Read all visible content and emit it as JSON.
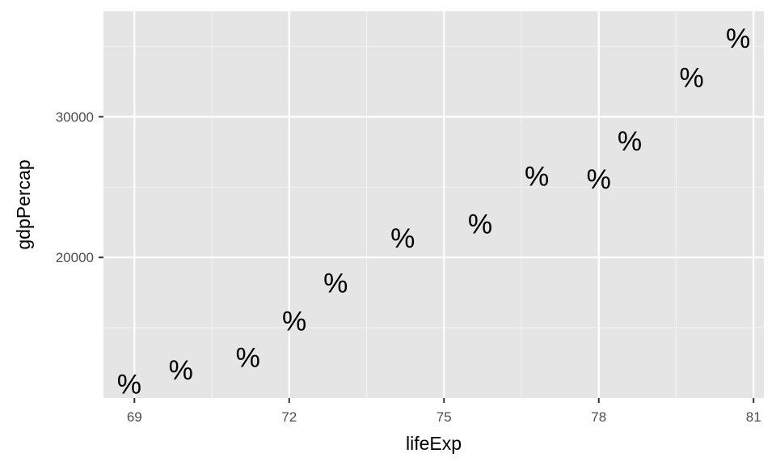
{
  "chart_data": {
    "type": "scatter",
    "title": "",
    "xlabel": "lifeExp",
    "ylabel": "gdpPercap",
    "marker": "%",
    "xlim": [
      68.4,
      81.2
    ],
    "ylim": [
      10000,
      37500
    ],
    "x_ticks": [
      69,
      72,
      75,
      78,
      81
    ],
    "y_ticks": [
      20000,
      30000
    ],
    "grid": true,
    "legend": "none",
    "points": [
      {
        "x": 68.9,
        "y": 11000
      },
      {
        "x": 69.9,
        "y": 12000
      },
      {
        "x": 71.2,
        "y": 12900
      },
      {
        "x": 72.1,
        "y": 15500
      },
      {
        "x": 72.9,
        "y": 18200
      },
      {
        "x": 74.2,
        "y": 21400
      },
      {
        "x": 75.7,
        "y": 22400
      },
      {
        "x": 76.8,
        "y": 25800
      },
      {
        "x": 78.0,
        "y": 25600
      },
      {
        "x": 78.6,
        "y": 28300
      },
      {
        "x": 79.8,
        "y": 32800
      },
      {
        "x": 80.7,
        "y": 35600
      }
    ]
  }
}
